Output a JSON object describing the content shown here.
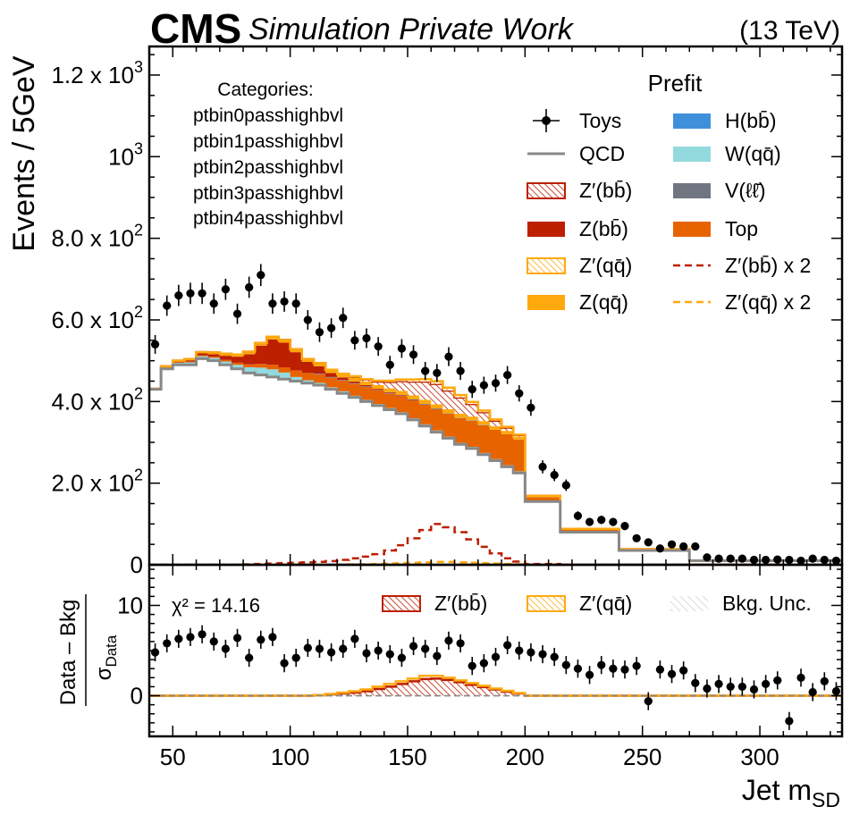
{
  "header": {
    "cms": "CMS",
    "tag": "Simulation Private Work",
    "energy": "(13 TeV)"
  },
  "categories": {
    "title": "Categories:",
    "items": [
      "ptbin0passhighbvl",
      "ptbin1passhighbvl",
      "ptbin2passhighbvl",
      "ptbin3passhighbvl",
      "ptbin4passhighbvl"
    ]
  },
  "legend": {
    "title": "Prefit",
    "entries": [
      {
        "key": "toys",
        "label": "Toys",
        "color": "#000000",
        "kind": "errorbar"
      },
      {
        "key": "hbb",
        "label": "H(bb̄)",
        "color": "#3f90da",
        "kind": "fill"
      },
      {
        "key": "qcd",
        "label": "QCD",
        "color": "#888888",
        "kind": "line"
      },
      {
        "key": "wqq",
        "label": "W(qq̄)",
        "color": "#92dadd",
        "kind": "fill"
      },
      {
        "key": "zpbb",
        "label": "Z′(bb̄)",
        "color": "#bd1f01",
        "kind": "hatch"
      },
      {
        "key": "vll",
        "label": "V(ℓℓ̄)",
        "color": "#717581",
        "kind": "fill"
      },
      {
        "key": "zbb",
        "label": "Z(bb̄)",
        "color": "#bd1f01",
        "kind": "fill"
      },
      {
        "key": "top",
        "label": "Top",
        "color": "#e76300",
        "kind": "fill"
      },
      {
        "key": "zpqq",
        "label": "Z′(qq̄)",
        "color": "#ffa90e",
        "kind": "hatch"
      },
      {
        "key": "zpbb2",
        "label": "Z′(bb̄) x 2",
        "color": "#bd1f01",
        "kind": "dash"
      },
      {
        "key": "zqq",
        "label": "Z(qq̄)",
        "color": "#ffa90e",
        "kind": "fill"
      },
      {
        "key": "zpqq2",
        "label": "Z′(qq̄) x 2",
        "color": "#ffa90e",
        "kind": "dash"
      }
    ]
  },
  "ratio_legend": {
    "chi2": "χ² = 14.16",
    "entries": [
      {
        "label": "Z′(bb̄)",
        "color": "#bd1f01"
      },
      {
        "label": "Z′(qq̄)",
        "color": "#ffa90e"
      },
      {
        "label": "Bkg. Unc.",
        "color": "#bbbbbb"
      }
    ]
  },
  "chart_data": {
    "type": "area",
    "xlabel": "Jet m",
    "xlabel_sub": "SD",
    "ylabel": "Events / 5GeV",
    "ratio_ylabel_num": "Data – Bkg",
    "ratio_ylabel_den": "σ",
    "ratio_ylabel_den_sub": "Data",
    "xlim": [
      40,
      335
    ],
    "ylim": [
      0,
      1270
    ],
    "ratio_ylim": [
      -4.5,
      14.5
    ],
    "xticks": [
      50,
      100,
      150,
      200,
      250,
      300
    ],
    "yticks": [
      {
        "value": 0,
        "mant": "0",
        "exp": ""
      },
      {
        "value": 200,
        "mant": "2.0 x 10",
        "exp": "2"
      },
      {
        "value": 400,
        "mant": "4.0 x 10",
        "exp": "2"
      },
      {
        "value": 600,
        "mant": "6.0 x 10",
        "exp": "2"
      },
      {
        "value": 800,
        "mant": "8.0 x 10",
        "exp": "2"
      },
      {
        "value": 1000,
        "mant": "10",
        "exp": "3"
      },
      {
        "value": 1200,
        "mant": "1.2 x 10",
        "exp": "3"
      }
    ],
    "ratio_yticks": [
      0,
      10
    ],
    "bin_edges": [
      40,
      45,
      50,
      55,
      60,
      65,
      70,
      75,
      80,
      85,
      90,
      95,
      100,
      105,
      110,
      115,
      120,
      125,
      130,
      135,
      140,
      145,
      150,
      155,
      160,
      165,
      170,
      175,
      180,
      185,
      190,
      195,
      200,
      215,
      240,
      270,
      335
    ],
    "stack": [
      {
        "key": "qcd",
        "values": [
          430,
          480,
          490,
          490,
          505,
          500,
          490,
          480,
          470,
          465,
          460,
          455,
          450,
          445,
          440,
          430,
          420,
          410,
          400,
          390,
          380,
          370,
          355,
          340,
          325,
          310,
          295,
          285,
          270,
          255,
          240,
          225,
          155,
          80,
          35,
          10
        ]
      },
      {
        "key": "vll",
        "values": [
          1,
          2,
          2,
          2,
          2,
          2,
          2,
          2,
          2,
          2,
          2,
          2,
          2,
          2,
          2,
          2,
          2,
          2,
          2,
          2,
          2,
          2,
          2,
          2,
          2,
          2,
          2,
          2,
          2,
          2,
          2,
          2,
          1,
          1,
          1,
          0
        ]
      },
      {
        "key": "wqq",
        "values": [
          0,
          2,
          3,
          4,
          4,
          5,
          6,
          8,
          12,
          16,
          17,
          14,
          8,
          5,
          4,
          3,
          3,
          2,
          2,
          2,
          2,
          2,
          2,
          2,
          2,
          2,
          2,
          2,
          2,
          2,
          2,
          2,
          1,
          1,
          0,
          0
        ]
      },
      {
        "key": "top",
        "values": [
          0,
          1,
          1,
          2,
          2,
          3,
          4,
          5,
          7,
          9,
          11,
          13,
          16,
          18,
          21,
          24,
          27,
          30,
          32,
          34,
          36,
          40,
          44,
          48,
          52,
          56,
          60,
          64,
          68,
          72,
          76,
          78,
          8,
          4,
          1,
          0
        ]
      },
      {
        "key": "hbb",
        "values": [
          0,
          0,
          0,
          0,
          0,
          0,
          0,
          0,
          0,
          0,
          0,
          0,
          0,
          0,
          1,
          1,
          1,
          1,
          1,
          1,
          1,
          1,
          1,
          1,
          1,
          1,
          1,
          1,
          1,
          0,
          0,
          0,
          0,
          0,
          0,
          0
        ]
      },
      {
        "key": "zbb",
        "values": [
          0,
          0,
          2,
          3,
          5,
          6,
          10,
          15,
          25,
          45,
          62,
          60,
          45,
          27,
          18,
          10,
          6,
          4,
          3,
          2,
          2,
          1,
          1,
          1,
          1,
          0,
          0,
          0,
          0,
          0,
          0,
          0,
          0,
          0,
          0,
          0
        ]
      },
      {
        "key": "zqq",
        "values": [
          0,
          1,
          2,
          3,
          3,
          4,
          5,
          5,
          6,
          6,
          7,
          7,
          7,
          7,
          8,
          8,
          8,
          9,
          9,
          9,
          9,
          10,
          10,
          10,
          10,
          10,
          10,
          9,
          9,
          8,
          8,
          7,
          3,
          2,
          1,
          0
        ]
      },
      {
        "key": "zpbb",
        "values": [
          0,
          0,
          0,
          0,
          0,
          0,
          0,
          0,
          0,
          0,
          0,
          0,
          0,
          0,
          0,
          0,
          1,
          3,
          5,
          9,
          16,
          24,
          34,
          45,
          50,
          46,
          40,
          31,
          22,
          14,
          8,
          4,
          1,
          0,
          0,
          0
        ]
      },
      {
        "key": "zpqq",
        "values": [
          0,
          0,
          0,
          0,
          0,
          0,
          0,
          0,
          0,
          0,
          0,
          0,
          0,
          0,
          0,
          0,
          0,
          1,
          1,
          2,
          3,
          4,
          5,
          6,
          7,
          7,
          6,
          5,
          4,
          3,
          2,
          1,
          0,
          0,
          0,
          0
        ]
      }
    ],
    "signal_dashed": {
      "zpbb2": [
        0,
        0,
        0,
        0,
        0,
        0,
        0,
        0,
        1,
        2,
        3,
        4,
        5,
        6,
        7,
        9,
        12,
        16,
        20,
        26,
        35,
        48,
        65,
        85,
        100,
        92,
        80,
        62,
        44,
        28,
        16,
        8,
        2,
        0,
        0,
        0
      ],
      "zpqq2": [
        0,
        0,
        0,
        0,
        0,
        0,
        0,
        0,
        0,
        0,
        0,
        0,
        0,
        0,
        0,
        0,
        0,
        1,
        1,
        2,
        3,
        4,
        5,
        6,
        7,
        7,
        6,
        5,
        4,
        3,
        2,
        1,
        0,
        0,
        0,
        0
      ]
    },
    "toys": {
      "x": [
        42.5,
        47.5,
        52.5,
        57.5,
        62.5,
        67.5,
        72.5,
        77.5,
        82.5,
        87.5,
        92.5,
        97.5,
        102.5,
        107.5,
        112.5,
        117.5,
        122.5,
        127.5,
        132.5,
        137.5,
        142.5,
        147.5,
        152.5,
        157.5,
        162.5,
        167.5,
        172.5,
        177.5,
        182.5,
        187.5,
        192.5,
        197.5,
        202.5,
        207.5,
        212.5,
        217.5,
        222.5,
        227.5,
        232.5,
        237.5,
        242.5,
        247.5,
        252.5,
        257.5,
        262.5,
        267.5,
        272.5,
        277.5,
        282.5,
        287.5,
        292.5,
        297.5,
        302.5,
        307.5,
        312.5,
        317.5,
        322.5,
        327.5,
        332.5
      ],
      "y": [
        540,
        635,
        660,
        665,
        665,
        640,
        675,
        615,
        680,
        710,
        640,
        645,
        640,
        600,
        570,
        580,
        605,
        550,
        555,
        535,
        490,
        530,
        515,
        475,
        470,
        510,
        475,
        430,
        440,
        445,
        465,
        420,
        385,
        240,
        220,
        195,
        120,
        105,
        110,
        105,
        95,
        65,
        55,
        40,
        50,
        45,
        45,
        18,
        15,
        15,
        15,
        12,
        12,
        13,
        12,
        10,
        15,
        12,
        10
      ],
      "err": [
        23,
        25,
        26,
        26,
        26,
        25,
        26,
        25,
        26,
        27,
        25,
        25,
        25,
        24,
        24,
        24,
        25,
        23,
        24,
        23,
        22,
        23,
        23,
        22,
        22,
        23,
        22,
        21,
        21,
        21,
        22,
        20,
        20,
        16,
        15,
        14,
        11,
        10,
        10,
        10,
        10,
        8,
        7,
        6,
        7,
        7,
        7,
        4,
        4,
        4,
        4,
        3,
        3,
        4,
        3,
        3,
        4,
        3,
        3
      ]
    },
    "ratio": {
      "y": [
        4.8,
        5.8,
        6.3,
        6.5,
        6.8,
        6.0,
        5.2,
        6.4,
        4.2,
        6.2,
        6.5,
        3.6,
        4.2,
        5.3,
        5.2,
        4.8,
        5.2,
        6.3,
        4.7,
        5.0,
        4.6,
        4.2,
        5.5,
        5.2,
        4.4,
        6.1,
        5.8,
        3.3,
        3.6,
        4.3,
        5.6,
        5.0,
        4.8,
        4.6,
        4.3,
        3.4,
        3.0,
        2.3,
        3.4,
        3.0,
        2.9,
        3.3,
        -0.6,
        2.9,
        2.4,
        2.8,
        1.4,
        0.8,
        1.3,
        1.0,
        1.0,
        0.7,
        1.3,
        1.7,
        -2.8,
        2.0,
        0.4,
        1.6,
        0.5
      ],
      "err": [
        1,
        1,
        1,
        1,
        1,
        1,
        1,
        1,
        1,
        1,
        1,
        1,
        1,
        1,
        1,
        1,
        1,
        1,
        1,
        1,
        1,
        1,
        1,
        1,
        1,
        1,
        1,
        1,
        1,
        1,
        1,
        1,
        1,
        1,
        1,
        1,
        1,
        1,
        1,
        1,
        1,
        1,
        1,
        1,
        1,
        1,
        1,
        1,
        1,
        1,
        1,
        1,
        1,
        1,
        1,
        1,
        1,
        1,
        1
      ],
      "zpbb": [
        0,
        0,
        0,
        0,
        0,
        0,
        0,
        0,
        0,
        0,
        0,
        0,
        0,
        0,
        0.05,
        0.15,
        0.25,
        0.35,
        0.5,
        0.75,
        1.0,
        1.3,
        1.6,
        1.85,
        1.9,
        1.75,
        1.5,
        1.2,
        0.95,
        0.7,
        0.45,
        0.25,
        0,
        0,
        0,
        0
      ],
      "zpqq": [
        0,
        0,
        0,
        0,
        0,
        0,
        0,
        0,
        0,
        0,
        0,
        0,
        0,
        0,
        0.05,
        0.2,
        0.35,
        0.5,
        0.7,
        1.0,
        1.3,
        1.6,
        1.9,
        2.2,
        2.2,
        2.0,
        1.7,
        1.4,
        1.1,
        0.8,
        0.55,
        0.3,
        0,
        0,
        0,
        0
      ]
    }
  }
}
